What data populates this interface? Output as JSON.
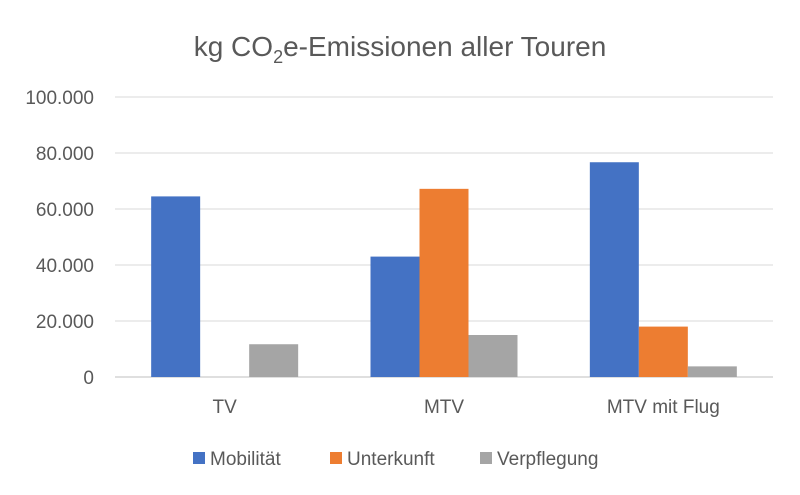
{
  "chart_data": {
    "type": "bar",
    "title": "kg CO",
    "title_sub": "2",
    "title_rest": "e-Emissionen aller Touren",
    "categories": [
      "TV",
      "MTV",
      "MTV mit Flug"
    ],
    "series": [
      {
        "name": "Mobilität",
        "color": "#4472C4",
        "values": [
          64500,
          43000,
          76700
        ]
      },
      {
        "name": "Unterkunft",
        "color": "#ED7D31",
        "values": [
          0,
          67200,
          18000
        ]
      },
      {
        "name": "Verpflegung",
        "color": "#A5A5A5",
        "values": [
          11700,
          15000,
          3800
        ]
      }
    ],
    "ylim": [
      0,
      100000
    ],
    "yticks": [
      0,
      20000,
      40000,
      60000,
      80000,
      100000
    ],
    "ytick_labels": [
      "0",
      "20.000",
      "40.000",
      "60.000",
      "80.000",
      "100.000"
    ],
    "grid": true,
    "legend": "bottom",
    "xlabel": "",
    "ylabel": ""
  }
}
